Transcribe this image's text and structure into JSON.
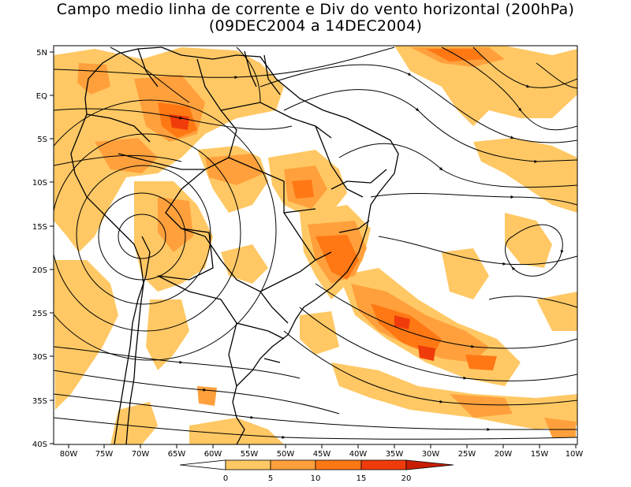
{
  "title": {
    "line1": "Campo medio linha de corrente e Div do vento horizontal (200hPa)",
    "line2": "(09DEC2004 a 14DEC2004)"
  },
  "axes": {
    "lat_ticks": [
      "5N",
      "EQ",
      "5S",
      "10S",
      "15S",
      "20S",
      "25S",
      "30S",
      "35S",
      "40S"
    ],
    "lon_ticks": [
      "80W",
      "75W",
      "70W",
      "65W",
      "60W",
      "55W",
      "50W",
      "45W",
      "40W",
      "35W",
      "30W",
      "25W",
      "20W",
      "15W",
      "10W"
    ],
    "lat_range": [
      -40,
      6
    ],
    "lon_range": [
      -82,
      -10
    ]
  },
  "colorbar": {
    "labels": [
      "0",
      "5",
      "10",
      "15",
      "20"
    ],
    "levels": [
      0,
      5,
      10,
      15,
      20
    ],
    "colors": [
      "#ffc864",
      "#ffa03c",
      "#ff7814",
      "#f03c0a",
      "#c81e00"
    ]
  },
  "colors": {
    "land_border": "#000000",
    "streamline": "#000000"
  }
}
